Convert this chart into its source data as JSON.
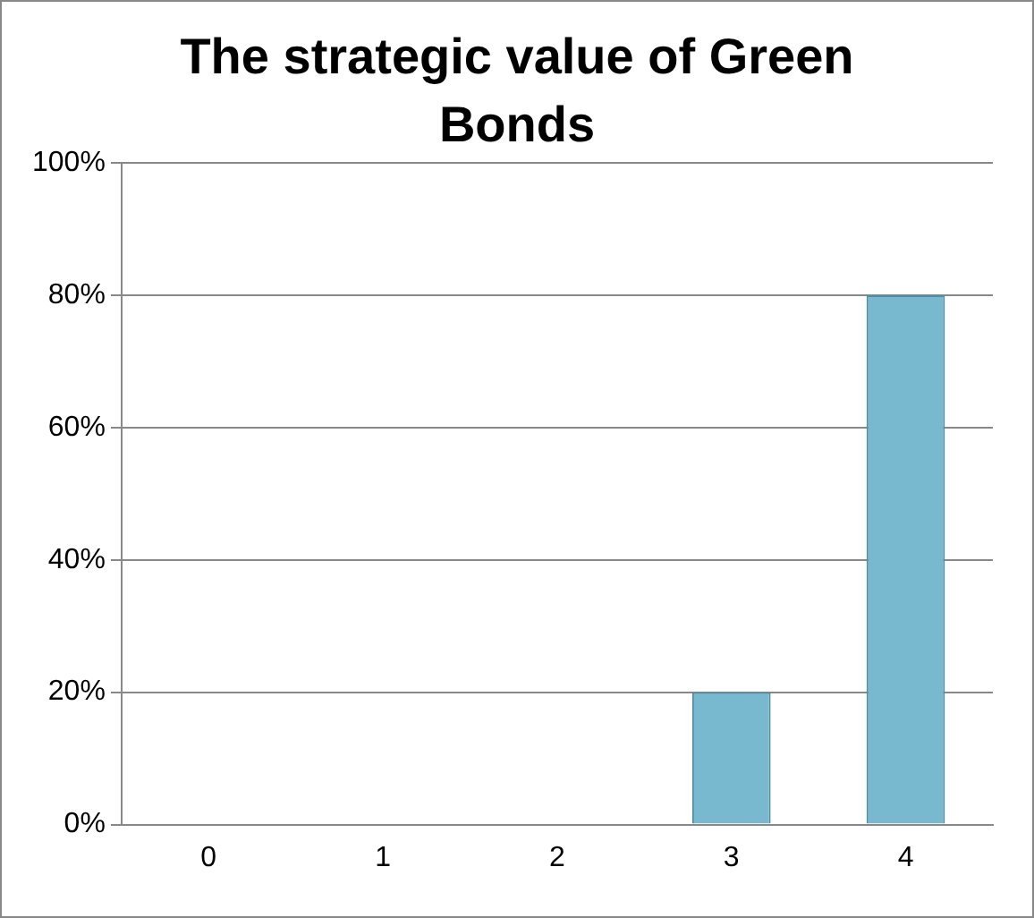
{
  "chart_data": {
    "type": "bar",
    "title": "The strategic value of Green Bonds",
    "categories": [
      "0",
      "1",
      "2",
      "3",
      "4"
    ],
    "values": [
      0,
      0,
      0,
      20,
      80
    ],
    "color": "#79b9cf",
    "ylim": [
      0,
      100
    ],
    "yticks": [
      {
        "value": 0,
        "label": "0%"
      },
      {
        "value": 20,
        "label": "20%"
      },
      {
        "value": 40,
        "label": "40%"
      },
      {
        "value": 60,
        "label": "60%"
      },
      {
        "value": 80,
        "label": "80%"
      },
      {
        "value": 100,
        "label": "100%"
      }
    ],
    "grid": "y",
    "legend": false
  }
}
